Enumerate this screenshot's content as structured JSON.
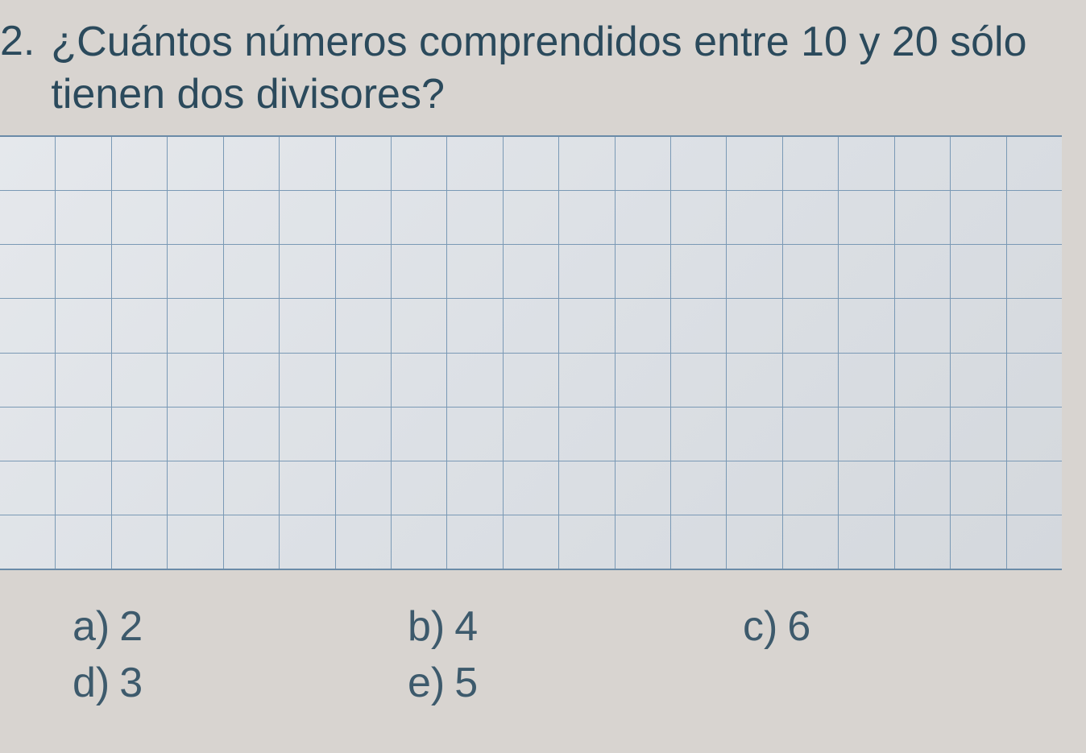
{
  "question": {
    "number": "2.",
    "text_line1": "¿Cuántos números comprendidos entre 10 y 20 sólo",
    "text_line2": "tienen dos divisores?"
  },
  "grid": {
    "columns": 19,
    "rows": 8,
    "line_color": "#7a99b5",
    "background_gradient": [
      "#e5e8ec",
      "#dce0e5",
      "#d4d8dd"
    ]
  },
  "options": [
    {
      "label": "a)",
      "value": "2"
    },
    {
      "label": "b)",
      "value": "4"
    },
    {
      "label": "c)",
      "value": "6"
    },
    {
      "label": "d)",
      "value": "3"
    },
    {
      "label": "e)",
      "value": "5"
    }
  ],
  "colors": {
    "background": "#d8d4d0",
    "text": "#2b4a5c",
    "option_text": "#3d5a6c"
  },
  "typography": {
    "question_fontsize": 52,
    "option_fontsize": 52,
    "font_family": "Arial, sans-serif"
  }
}
